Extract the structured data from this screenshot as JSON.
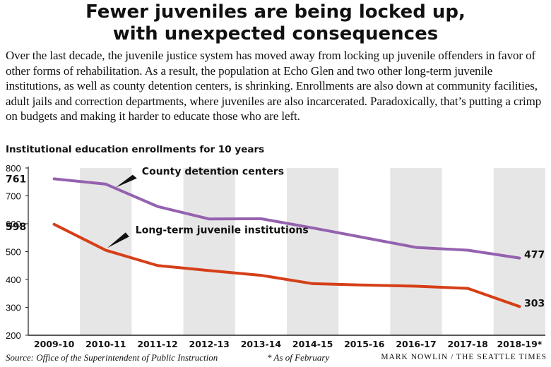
{
  "title_line1": "Fewer juveniles are being locked up,",
  "title_line2": "with unexpected consequences",
  "intro": "Over the last decade, the juvenile justice system has moved away from locking up juvenile offenders in favor of other forms of rehabilitation. As a result, the population at Echo Glen and two other long-term juvenile institutions, as well as county detention centers, is shrinking. Enrollments are also down at community facilities, adult jails and correction departments, where juveniles are also incarcerated. Paradoxically, that’s putting a crimp on budgets and making it harder to educate those who are left.",
  "chart_data": {
    "type": "line",
    "title": "Institutional education enrollments for 10 years",
    "categories": [
      "2009-10",
      "2010-11",
      "2011-12",
      "2012-13",
      "2013-14",
      "2014-15",
      "2015-16",
      "2016-17",
      "2017-18",
      "2018-19*"
    ],
    "ylim": [
      200,
      800
    ],
    "yticks": [
      200,
      300,
      400,
      500,
      600,
      700,
      800
    ],
    "grid": false,
    "shaded_bands": [
      "2010-11",
      "2012-13",
      "2014-15",
      "2016-17",
      "2018-19*"
    ],
    "series": [
      {
        "name": "County detention centers",
        "color": "#9462AF",
        "values": [
          761,
          742,
          662,
          617,
          618,
          585,
          550,
          515,
          505,
          477
        ],
        "start_label": "761",
        "end_label": "477"
      },
      {
        "name": "Long-term juvenile institutions",
        "color": "#D53F18",
        "values": [
          598,
          505,
          450,
          432,
          415,
          385,
          380,
          376,
          368,
          303
        ],
        "start_label": "598",
        "end_label": "303"
      }
    ]
  },
  "footer": {
    "source": "Source: Office of the Superintendent of Public Instruction",
    "note": "* As of February",
    "credit": "Mark Nowlin / The Seattle Times"
  }
}
